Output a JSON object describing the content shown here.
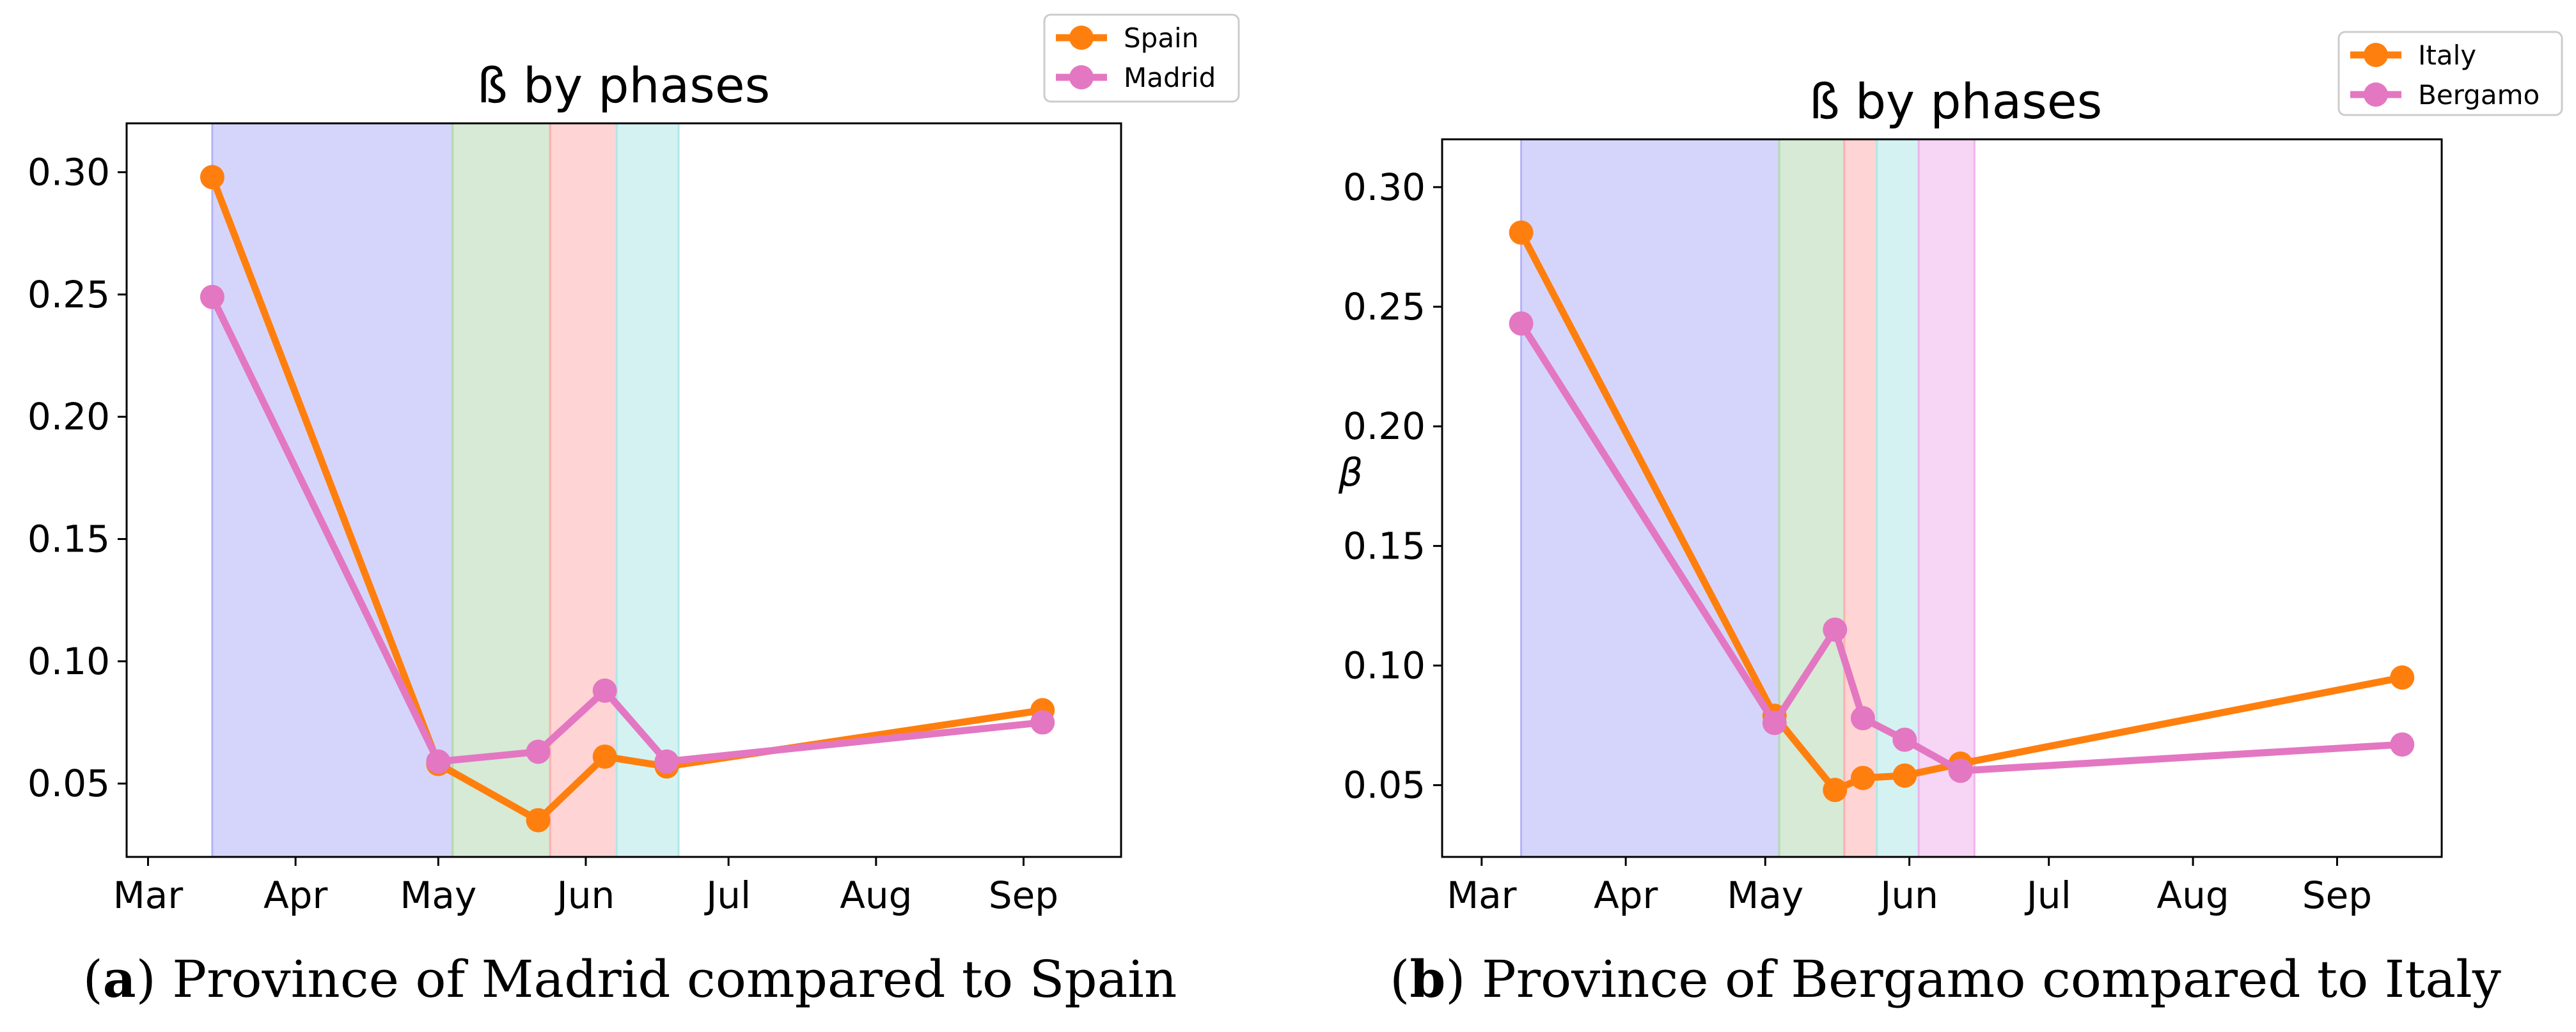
{
  "panel_labels": {
    "a": "a",
    "b": "b"
  },
  "axis_symbol": "β",
  "chart_data": [
    {
      "type": "line",
      "title": "ß by phases",
      "caption": "Province of Madrid compared to Spain",
      "xlabel": "",
      "ylabel": "",
      "x_ticks": [
        {
          "label": "Mar",
          "day": 1
        },
        {
          "label": "Apr",
          "day": 32
        },
        {
          "label": "May",
          "day": 62
        },
        {
          "label": "Jun",
          "day": 93
        },
        {
          "label": "Jul",
          "day": 123
        },
        {
          "label": "Aug",
          "day": 154
        },
        {
          "label": "Sep",
          "day": 185
        }
      ],
      "xlim": [
        -3.5,
        205.5
      ],
      "ylim": [
        0.02,
        0.32
      ],
      "y_ticks": [
        {
          "label": "0.05",
          "value": 0.05
        },
        {
          "label": "0.10",
          "value": 0.1
        },
        {
          "label": "0.15",
          "value": 0.15
        },
        {
          "label": "0.20",
          "value": 0.2
        },
        {
          "label": "0.25",
          "value": 0.25
        },
        {
          "label": "0.30",
          "value": 0.3
        }
      ],
      "phases": [
        {
          "start": 14.5,
          "end": 65,
          "color": "#b3b3f8"
        },
        {
          "start": 65,
          "end": 85.5,
          "color": "#b5d9b3"
        },
        {
          "start": 85.5,
          "end": 99.5,
          "color": "#ffb0b0"
        },
        {
          "start": 99.5,
          "end": 112.5,
          "color": "#b0e8e8"
        }
      ],
      "series": [
        {
          "name": "Spain",
          "color": "#ff7f0e",
          "x": [
            14.5,
            62,
            83,
            97,
            110,
            189
          ],
          "values": [
            0.298,
            0.058,
            0.035,
            0.061,
            0.057,
            0.08
          ]
        },
        {
          "name": "Madrid",
          "color": "#e377c2",
          "x": [
            14.5,
            62,
            83,
            97,
            110,
            189
          ],
          "values": [
            0.249,
            0.059,
            0.063,
            0.088,
            0.059,
            0.075
          ]
        }
      ]
    },
    {
      "type": "line",
      "title": "ß by phases",
      "caption": "Province of Bergamo compared to Italy",
      "xlabel": "",
      "ylabel": "β",
      "x_ticks": [
        {
          "label": "Mar",
          "day": 1
        },
        {
          "label": "Apr",
          "day": 32
        },
        {
          "label": "May",
          "day": 62
        },
        {
          "label": "Jun",
          "day": 93
        },
        {
          "label": "Jul",
          "day": 123
        },
        {
          "label": "Aug",
          "day": 154
        },
        {
          "label": "Sep",
          "day": 185
        }
      ],
      "xlim": [
        -7.5,
        207.5
      ],
      "ylim": [
        0.02,
        0.32
      ],
      "y_ticks": [
        {
          "label": "0.05",
          "value": 0.05
        },
        {
          "label": "0.10",
          "value": 0.1
        },
        {
          "label": "0.15",
          "value": 0.15
        },
        {
          "label": "0.20",
          "value": 0.2
        },
        {
          "label": "0.25",
          "value": 0.25
        },
        {
          "label": "0.30",
          "value": 0.3
        }
      ],
      "phases": [
        {
          "start": 9.5,
          "end": 65,
          "color": "#b3b3f8"
        },
        {
          "start": 65,
          "end": 79,
          "color": "#b5d9b3"
        },
        {
          "start": 79,
          "end": 86,
          "color": "#ffb0b0"
        },
        {
          "start": 86,
          "end": 95,
          "color": "#b0e8e8"
        },
        {
          "start": 95,
          "end": 107,
          "color": "#f0b3ec"
        }
      ],
      "series": [
        {
          "name": "Italy",
          "color": "#ff7f0e",
          "x": [
            9.5,
            64,
            77,
            83,
            92,
            104,
            199
          ],
          "values": [
            0.281,
            0.079,
            0.048,
            0.053,
            0.054,
            0.059,
            0.095
          ]
        },
        {
          "name": "Bergamo",
          "color": "#e377c2",
          "x": [
            9.5,
            64,
            77,
            83,
            92,
            104,
            199
          ],
          "values": [
            0.243,
            0.076,
            0.115,
            0.078,
            0.069,
            0.056,
            0.067
          ]
        }
      ]
    }
  ]
}
